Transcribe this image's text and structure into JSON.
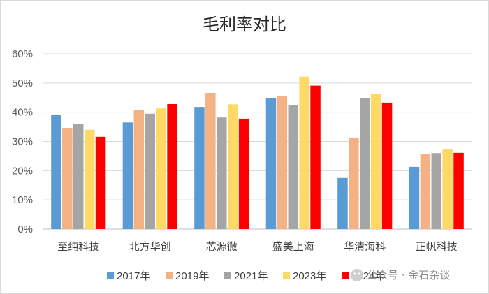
{
  "chart_data": {
    "type": "bar",
    "title": "毛利率对比",
    "categories": [
      "至纯科技",
      "北方华创",
      "芯源微",
      "盛美上海",
      "华清海科",
      "正帆科技"
    ],
    "series": [
      {
        "name": "2017年",
        "color": "#5b9bd5",
        "values": [
          39,
          36.5,
          41.8,
          44.7,
          17.5,
          21.3
        ]
      },
      {
        "name": "2019年",
        "color": "#f4b183",
        "values": [
          34.5,
          40.7,
          46.6,
          45.4,
          31.3,
          25.6
        ]
      },
      {
        "name": "2021年",
        "color": "#a5a5a5",
        "values": [
          36,
          39.5,
          38.2,
          42.5,
          44.8,
          26
        ]
      },
      {
        "name": "2023年",
        "color": "#ffd966",
        "values": [
          34,
          41.3,
          42.7,
          52.2,
          46.2,
          27.3
        ]
      },
      {
        "name": "2024年",
        "color": "#ff0000",
        "values": [
          31.6,
          42.8,
          37.8,
          49.1,
          43.3,
          26.1
        ]
      }
    ],
    "ylim": [
      0,
      60
    ],
    "yticks": [
      "0%",
      "10%",
      "20%",
      "30%",
      "40%",
      "50%",
      "60%"
    ],
    "xlabel": "",
    "ylabel": "",
    "grid": true,
    "legend": "bottom"
  },
  "watermark": {
    "text": "公众号 · 金石杂谈",
    "icon": "wechat-icon"
  }
}
